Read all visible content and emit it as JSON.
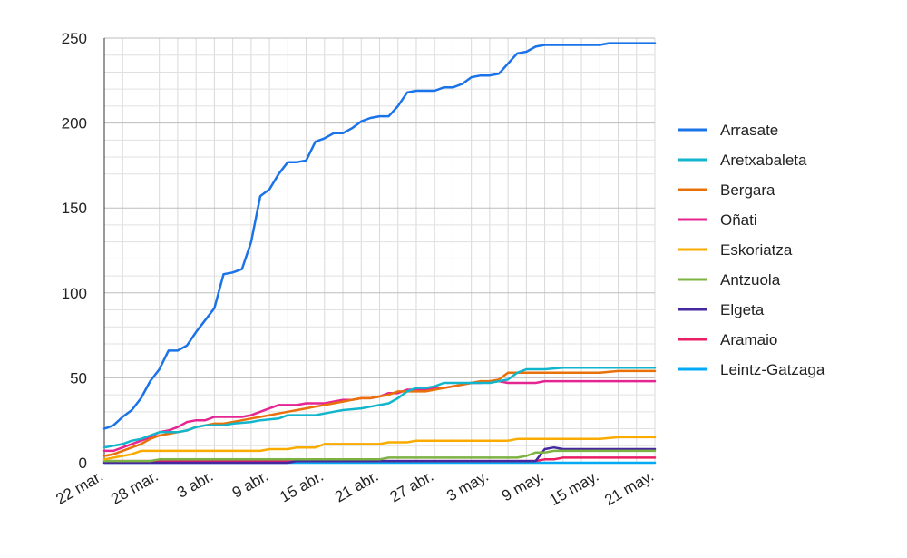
{
  "chart_data": {
    "type": "line",
    "title": "",
    "xlabel": "",
    "ylabel": "",
    "ylim": [
      0,
      250
    ],
    "yticks": [
      0,
      50,
      100,
      150,
      200,
      250
    ],
    "grid": true,
    "legend_position": "right",
    "x_start": "22 mar.",
    "x_end": "21 may.",
    "x_ticks": [
      {
        "day": 0,
        "label": "22 mar."
      },
      {
        "day": 6,
        "label": "28 mar."
      },
      {
        "day": 12,
        "label": "3 abr."
      },
      {
        "day": 18,
        "label": "9 abr."
      },
      {
        "day": 24,
        "label": "15 abr."
      },
      {
        "day": 30,
        "label": "21 abr."
      },
      {
        "day": 36,
        "label": "27 abr."
      },
      {
        "day": 42,
        "label": "3 may."
      },
      {
        "day": 48,
        "label": "9 may."
      },
      {
        "day": 54,
        "label": "15 may."
      },
      {
        "day": 60,
        "label": "21 may."
      }
    ],
    "series": [
      {
        "name": "Arrasate",
        "color": "#1a73e8",
        "points": [
          [
            0,
            20
          ],
          [
            1,
            22
          ],
          [
            2,
            27
          ],
          [
            3,
            31
          ],
          [
            4,
            38
          ],
          [
            5,
            48
          ],
          [
            6,
            55
          ],
          [
            7,
            66
          ],
          [
            8,
            66
          ],
          [
            9,
            69
          ],
          [
            10,
            77
          ],
          [
            11,
            84
          ],
          [
            12,
            91
          ],
          [
            13,
            111
          ],
          [
            14,
            112
          ],
          [
            15,
            114
          ],
          [
            16,
            130
          ],
          [
            17,
            157
          ],
          [
            18,
            161
          ],
          [
            19,
            170
          ],
          [
            20,
            177
          ],
          [
            21,
            177
          ],
          [
            22,
            178
          ],
          [
            23,
            189
          ],
          [
            24,
            191
          ],
          [
            25,
            194
          ],
          [
            26,
            194
          ],
          [
            27,
            197
          ],
          [
            28,
            201
          ],
          [
            29,
            203
          ],
          [
            30,
            204
          ],
          [
            31,
            204
          ],
          [
            32,
            210
          ],
          [
            33,
            218
          ],
          [
            34,
            219
          ],
          [
            35,
            219
          ],
          [
            36,
            219
          ],
          [
            37,
            221
          ],
          [
            38,
            221
          ],
          [
            39,
            223
          ],
          [
            40,
            227
          ],
          [
            41,
            228
          ],
          [
            42,
            228
          ],
          [
            43,
            229
          ],
          [
            44,
            235
          ],
          [
            45,
            241
          ],
          [
            46,
            242
          ],
          [
            47,
            245
          ],
          [
            48,
            246
          ],
          [
            49,
            246
          ],
          [
            50,
            246
          ],
          [
            51,
            246
          ],
          [
            52,
            246
          ],
          [
            53,
            246
          ],
          [
            54,
            246
          ],
          [
            55,
            247
          ],
          [
            56,
            247
          ],
          [
            57,
            247
          ],
          [
            58,
            247
          ],
          [
            59,
            247
          ],
          [
            60,
            247
          ]
        ]
      },
      {
        "name": "Aretxabaleta",
        "color": "#12b5cb",
        "points": [
          [
            0,
            9
          ],
          [
            2,
            11
          ],
          [
            3,
            13
          ],
          [
            4,
            14
          ],
          [
            5,
            16
          ],
          [
            6,
            18
          ],
          [
            8,
            18
          ],
          [
            9,
            19
          ],
          [
            10,
            21
          ],
          [
            11,
            22
          ],
          [
            13,
            22
          ],
          [
            14,
            23
          ],
          [
            16,
            24
          ],
          [
            17,
            25
          ],
          [
            19,
            26
          ],
          [
            20,
            28
          ],
          [
            21,
            28
          ],
          [
            23,
            28
          ],
          [
            24,
            29
          ],
          [
            25,
            30
          ],
          [
            26,
            31
          ],
          [
            28,
            32
          ],
          [
            29,
            33
          ],
          [
            30,
            34
          ],
          [
            31,
            35
          ],
          [
            32,
            38
          ],
          [
            33,
            42
          ],
          [
            34,
            44
          ],
          [
            35,
            44
          ],
          [
            36,
            45
          ],
          [
            37,
            47
          ],
          [
            38,
            47
          ],
          [
            39,
            47
          ],
          [
            41,
            47
          ],
          [
            42,
            47
          ],
          [
            43,
            48
          ],
          [
            44,
            49
          ],
          [
            45,
            53
          ],
          [
            46,
            55
          ],
          [
            47,
            55
          ],
          [
            48,
            55
          ],
          [
            50,
            56
          ],
          [
            52,
            56
          ],
          [
            60,
            56
          ]
        ]
      },
      {
        "name": "Bergara",
        "color": "#e8710a",
        "points": [
          [
            0,
            4
          ],
          [
            1,
            5
          ],
          [
            2,
            7
          ],
          [
            3,
            9
          ],
          [
            4,
            11
          ],
          [
            5,
            14
          ],
          [
            6,
            16
          ],
          [
            7,
            17
          ],
          [
            8,
            18
          ],
          [
            9,
            19
          ],
          [
            10,
            21
          ],
          [
            11,
            22
          ],
          [
            12,
            23
          ],
          [
            13,
            23
          ],
          [
            14,
            24
          ],
          [
            15,
            25
          ],
          [
            16,
            26
          ],
          [
            17,
            27
          ],
          [
            18,
            28
          ],
          [
            19,
            29
          ],
          [
            20,
            30
          ],
          [
            21,
            31
          ],
          [
            22,
            32
          ],
          [
            23,
            33
          ],
          [
            24,
            34
          ],
          [
            25,
            35
          ],
          [
            26,
            36
          ],
          [
            27,
            37
          ],
          [
            28,
            38
          ],
          [
            29,
            38
          ],
          [
            30,
            39
          ],
          [
            31,
            40
          ],
          [
            32,
            42
          ],
          [
            33,
            42
          ],
          [
            34,
            42
          ],
          [
            35,
            42
          ],
          [
            36,
            43
          ],
          [
            37,
            44
          ],
          [
            38,
            45
          ],
          [
            39,
            46
          ],
          [
            40,
            47
          ],
          [
            41,
            48
          ],
          [
            42,
            48
          ],
          [
            43,
            49
          ],
          [
            44,
            53
          ],
          [
            45,
            53
          ],
          [
            46,
            53
          ],
          [
            47,
            53
          ],
          [
            48,
            53
          ],
          [
            50,
            53
          ],
          [
            52,
            53
          ],
          [
            54,
            53
          ],
          [
            56,
            54
          ],
          [
            58,
            54
          ],
          [
            60,
            54
          ]
        ]
      },
      {
        "name": "Oñati",
        "color": "#e52592",
        "points": [
          [
            0,
            7
          ],
          [
            1,
            7
          ],
          [
            2,
            9
          ],
          [
            3,
            11
          ],
          [
            4,
            13
          ],
          [
            5,
            15
          ],
          [
            6,
            18
          ],
          [
            7,
            19
          ],
          [
            8,
            21
          ],
          [
            9,
            24
          ],
          [
            10,
            25
          ],
          [
            11,
            25
          ],
          [
            12,
            27
          ],
          [
            13,
            27
          ],
          [
            14,
            27
          ],
          [
            15,
            27
          ],
          [
            16,
            28
          ],
          [
            17,
            30
          ],
          [
            18,
            32
          ],
          [
            19,
            34
          ],
          [
            20,
            34
          ],
          [
            21,
            34
          ],
          [
            22,
            35
          ],
          [
            23,
            35
          ],
          [
            24,
            35
          ],
          [
            25,
            36
          ],
          [
            26,
            37
          ],
          [
            27,
            37
          ],
          [
            28,
            38
          ],
          [
            29,
            38
          ],
          [
            30,
            39
          ],
          [
            31,
            41
          ],
          [
            32,
            41
          ],
          [
            33,
            43
          ],
          [
            34,
            43
          ],
          [
            35,
            43
          ],
          [
            36,
            44
          ],
          [
            37,
            44
          ],
          [
            38,
            45
          ],
          [
            39,
            46
          ],
          [
            40,
            47
          ],
          [
            41,
            47
          ],
          [
            42,
            48
          ],
          [
            43,
            48
          ],
          [
            44,
            47
          ],
          [
            45,
            47
          ],
          [
            46,
            47
          ],
          [
            47,
            47
          ],
          [
            48,
            48
          ],
          [
            50,
            48
          ],
          [
            52,
            48
          ],
          [
            60,
            48
          ]
        ]
      },
      {
        "name": "Eskoriatza",
        "color": "#f9ab00",
        "points": [
          [
            0,
            2
          ],
          [
            2,
            4
          ],
          [
            3,
            5
          ],
          [
            4,
            7
          ],
          [
            5,
            7
          ],
          [
            6,
            7
          ],
          [
            17,
            7
          ],
          [
            18,
            8
          ],
          [
            20,
            8
          ],
          [
            21,
            9
          ],
          [
            23,
            9
          ],
          [
            24,
            11
          ],
          [
            25,
            11
          ],
          [
            30,
            11
          ],
          [
            31,
            12
          ],
          [
            33,
            12
          ],
          [
            34,
            13
          ],
          [
            40,
            13
          ],
          [
            44,
            13
          ],
          [
            45,
            14
          ],
          [
            50,
            14
          ],
          [
            54,
            14
          ],
          [
            56,
            15
          ],
          [
            60,
            15
          ]
        ]
      },
      {
        "name": "Antzuola",
        "color": "#7cb342",
        "points": [
          [
            0,
            1
          ],
          [
            5,
            1
          ],
          [
            6,
            2
          ],
          [
            30,
            2
          ],
          [
            31,
            3
          ],
          [
            45,
            3
          ],
          [
            46,
            4
          ],
          [
            47,
            6
          ],
          [
            48,
            6
          ],
          [
            49,
            7
          ],
          [
            60,
            7
          ]
        ]
      },
      {
        "name": "Elgeta",
        "color": "#4527a0",
        "points": [
          [
            0,
            0
          ],
          [
            20,
            0
          ],
          [
            21,
            1
          ],
          [
            47,
            1
          ],
          [
            48,
            8
          ],
          [
            49,
            9
          ],
          [
            50,
            8
          ],
          [
            60,
            8
          ]
        ]
      },
      {
        "name": "Aramaio",
        "color": "#e91e63",
        "points": [
          [
            0,
            1
          ],
          [
            47,
            1
          ],
          [
            48,
            2
          ],
          [
            49,
            2
          ],
          [
            50,
            3
          ],
          [
            60,
            3
          ]
        ]
      },
      {
        "name": "Leintz-Gatzaga",
        "color": "#03a9f4",
        "points": [
          [
            0,
            0
          ],
          [
            60,
            0
          ]
        ]
      }
    ]
  }
}
